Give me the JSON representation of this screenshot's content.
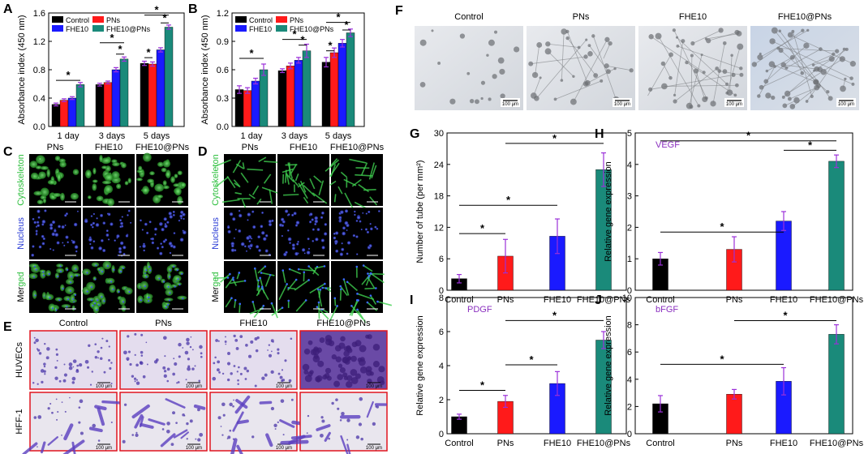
{
  "panel_labels": {
    "A": "A",
    "B": "B",
    "C": "C",
    "D": "D",
    "E": "E",
    "F": "F",
    "G": "G",
    "H": "H",
    "I": "I",
    "J": "J"
  },
  "colors": {
    "Control": "#000000",
    "PNs": "#ff1a1a",
    "FHE10": "#1a1aff",
    "FHE10@PNs": "#1a8a7a",
    "error": "#9b30d9",
    "gene_label": "#8a2fbf"
  },
  "legend": [
    "Control",
    "PNs",
    "FHE10",
    "FHE10@PNs"
  ],
  "panel_c": {
    "cols": [
      "PNs",
      "FHE10",
      "FHE10@PNs"
    ],
    "rows": [
      {
        "pre": "",
        "colored": "Cytoskeleton",
        "color": "#2fbf3f"
      },
      {
        "pre": "",
        "colored": "Nucleus",
        "color": "#2a3cd6"
      },
      {
        "pre": "Mer",
        "colored": "ged",
        "color": "#2fbf3f"
      }
    ]
  },
  "panel_d": {
    "cols": [
      "PNs",
      "FHE10",
      "FHE10@PNs"
    ],
    "rows": [
      {
        "pre": "",
        "colored": "Cytoskeleton",
        "color": "#2fbf3f"
      },
      {
        "pre": "",
        "colored": "Nucleus",
        "color": "#2a3cd6"
      },
      {
        "pre": "Mer",
        "colored": "ged",
        "color": "#2fbf3f"
      }
    ]
  },
  "panel_e": {
    "cols": [
      "Control",
      "PNs",
      "FHE10",
      "FHE10@PNs"
    ],
    "rows": [
      "HUVECs",
      "HFF-1"
    ],
    "scale": "100 μm"
  },
  "panel_f": {
    "cols": [
      "Control",
      "PNs",
      "FHE10",
      "FHE10@PNs"
    ],
    "scale": "100 μm"
  },
  "chart_data": [
    {
      "panel": "A",
      "type": "bar",
      "ylabel": "Absorbance index (450 nm)",
      "categories": [
        "1 day",
        "3 days",
        "5 days"
      ],
      "ylim": [
        0,
        1.6
      ],
      "yticks": [
        0.0,
        0.4,
        0.8,
        1.2,
        1.6
      ],
      "tick_labels": [
        "0.0",
        "0.4",
        "0.8",
        "1.2",
        "1.6"
      ],
      "series": [
        {
          "name": "Control",
          "values": [
            0.31,
            0.59,
            0.89
          ],
          "err": [
            0.02,
            0.02,
            0.03
          ]
        },
        {
          "name": "PNs",
          "values": [
            0.37,
            0.62,
            0.88
          ],
          "err": [
            0.02,
            0.02,
            0.03
          ]
        },
        {
          "name": "FHE10",
          "values": [
            0.4,
            0.8,
            1.08
          ],
          "err": [
            0.02,
            0.03,
            0.03
          ]
        },
        {
          "name": "FHE10@PNs",
          "values": [
            0.59,
            0.95,
            1.4
          ],
          "err": [
            0.03,
            0.03,
            0.03
          ]
        }
      ],
      "significance": [
        {
          "cat": 0,
          "from": 0,
          "to": 3,
          "y": 0.65
        },
        {
          "cat": 1,
          "from": 0,
          "to": 3,
          "y": 1.18
        },
        {
          "cat": 1,
          "from": 2,
          "to": 3,
          "y": 1.02
        },
        {
          "cat": 2,
          "from": 0,
          "to": 3,
          "y": 1.57
        },
        {
          "cat": 2,
          "from": 2,
          "to": 3,
          "y": 1.46
        },
        {
          "cat": 2,
          "from": 0,
          "to": 1,
          "y": 0.97
        }
      ]
    },
    {
      "panel": "B",
      "type": "bar",
      "ylabel": "Absorbance index (450 nm)",
      "categories": [
        "1 day",
        "3 days",
        "5 days"
      ],
      "ylim": [
        0,
        1.2
      ],
      "yticks": [
        0.0,
        0.3,
        0.6,
        0.9,
        1.2
      ],
      "tick_labels": [
        "0.0",
        "0.3",
        "0.6",
        "0.9",
        "1.2"
      ],
      "series": [
        {
          "name": "Control",
          "values": [
            0.39,
            0.59,
            0.68
          ],
          "err": [
            0.04,
            0.02,
            0.05
          ]
        },
        {
          "name": "PNs",
          "values": [
            0.38,
            0.64,
            0.78
          ],
          "err": [
            0.03,
            0.03,
            0.05
          ]
        },
        {
          "name": "FHE10",
          "values": [
            0.48,
            0.7,
            0.88
          ],
          "err": [
            0.03,
            0.03,
            0.04
          ]
        },
        {
          "name": "FHE10@PNs",
          "values": [
            0.6,
            0.8,
            0.99
          ],
          "err": [
            0.06,
            0.07,
            0.04
          ]
        }
      ],
      "significance": [
        {
          "cat": 0,
          "from": 0,
          "to": 3,
          "y": 0.72
        },
        {
          "cat": 1,
          "from": 0,
          "to": 3,
          "y": 0.92
        },
        {
          "cat": 1,
          "from": 2,
          "to": 3,
          "y": 0.86
        },
        {
          "cat": 2,
          "from": 0,
          "to": 3,
          "y": 1.1
        },
        {
          "cat": 2,
          "from": 2,
          "to": 3,
          "y": 1.02
        },
        {
          "cat": 2,
          "from": 0,
          "to": 1,
          "y": 0.8
        }
      ]
    },
    {
      "panel": "G",
      "type": "bar",
      "ylabel": "Number of tube (per mm²)",
      "categories": [
        "Control",
        "PNs",
        "FHE10",
        "FHE10@PNs"
      ],
      "ylim": [
        0,
        30
      ],
      "yticks": [
        0,
        6,
        12,
        18,
        24,
        30
      ],
      "tick_labels": [
        "0",
        "6",
        "12",
        "18",
        "24",
        "30"
      ],
      "values": [
        2.2,
        6.5,
        10.3,
        23.0
      ],
      "err": [
        0.8,
        3.2,
        3.3,
        3.2
      ],
      "significance": [
        {
          "from": 0,
          "to": 1,
          "y": 10.8
        },
        {
          "from": 0,
          "to": 2,
          "y": 16.2
        },
        {
          "from": 1,
          "to": 3,
          "y": 28.0
        }
      ]
    },
    {
      "panel": "H",
      "type": "bar",
      "ylabel": "Relative gene expression",
      "gene": "VEGF",
      "categories": [
        "Control",
        "PNs",
        "FHE10",
        "FHE10@PNs"
      ],
      "ylim": [
        0,
        5
      ],
      "yticks": [
        0,
        1,
        2,
        3,
        4,
        5
      ],
      "tick_labels": [
        "0",
        "1",
        "2",
        "3",
        "4",
        "5"
      ],
      "values": [
        1.0,
        1.3,
        2.2,
        4.1
      ],
      "err": [
        0.2,
        0.4,
        0.3,
        0.2
      ],
      "significance": [
        {
          "from": 0,
          "to": 2,
          "y": 1.85
        },
        {
          "from": 0,
          "to": 3,
          "y": 4.75
        },
        {
          "from": 2,
          "to": 3,
          "y": 4.45
        }
      ]
    },
    {
      "panel": "I",
      "type": "bar",
      "ylabel": "Relative gene expression",
      "gene": "PDGF",
      "categories": [
        "Control",
        "PNs",
        "FHE10",
        "FHE10@PNs"
      ],
      "ylim": [
        0,
        8
      ],
      "yticks": [
        0,
        2,
        4,
        6,
        8
      ],
      "tick_labels": [
        "0",
        "2",
        "4",
        "6",
        "8"
      ],
      "values": [
        1.0,
        1.9,
        2.95,
        5.5
      ],
      "err": [
        0.15,
        0.35,
        0.7,
        0.5
      ],
      "significance": [
        {
          "from": 0,
          "to": 1,
          "y": 2.55
        },
        {
          "from": 1,
          "to": 2,
          "y": 4.05
        },
        {
          "from": 1,
          "to": 3,
          "y": 6.65
        }
      ]
    },
    {
      "panel": "J",
      "type": "bar",
      "ylabel": "Relative gene expression",
      "gene": "bFGF",
      "categories": [
        "Control",
        "PNs",
        "FHE10",
        "FHE10@PNs"
      ],
      "ylim": [
        0,
        10
      ],
      "yticks": [
        0,
        2,
        4,
        6,
        8,
        10
      ],
      "tick_labels": [
        "0",
        "2",
        "4",
        "6",
        "8",
        "10"
      ],
      "values": [
        2.2,
        2.9,
        3.85,
        7.3
      ],
      "err": [
        0.6,
        0.35,
        1.0,
        0.7
      ],
      "significance": [
        {
          "from": 0,
          "to": 2,
          "y": 5.1
        },
        {
          "from": 1,
          "to": 3,
          "y": 8.3
        }
      ]
    }
  ]
}
